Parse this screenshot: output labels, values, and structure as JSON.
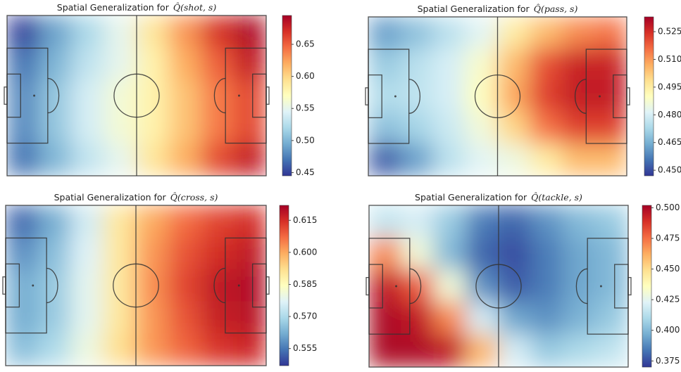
{
  "chart_data": [
    {
      "type": "heatmap",
      "title": "Spatial Generalization for",
      "title_math": "Q̂(shot, s)",
      "colormap": "RdYlBu_r",
      "zlim": [
        0.445,
        0.695
      ],
      "zticks": [
        0.45,
        {
          "value": 0.5,
          "label": "0.50"
        },
        0.55,
        {
          "value": 0.6,
          "label": "0.60"
        },
        0.65
      ],
      "z": [
        [
          0.45,
          0.49,
          0.52,
          0.55,
          0.59,
          0.63,
          0.67,
          0.69
        ],
        [
          0.47,
          0.5,
          0.53,
          0.55,
          0.58,
          0.62,
          0.65,
          0.68
        ],
        [
          0.48,
          0.51,
          0.54,
          0.56,
          0.58,
          0.61,
          0.64,
          0.66
        ],
        [
          0.48,
          0.51,
          0.54,
          0.56,
          0.58,
          0.61,
          0.64,
          0.66
        ],
        [
          0.47,
          0.5,
          0.53,
          0.55,
          0.59,
          0.62,
          0.66,
          0.68
        ]
      ]
    },
    {
      "type": "heatmap",
      "title": "Spatial Generalization for",
      "title_math": "Q̂(pass, s)",
      "colormap": "RdYlBu_r",
      "zlim": [
        0.447,
        0.533
      ],
      "zticks": [
        {
          "value": 0.45,
          "label": "0.450"
        },
        0.465,
        {
          "value": 0.48,
          "label": "0.480"
        },
        0.495,
        {
          "value": 0.51,
          "label": "0.510"
        },
        0.525
      ],
      "z": [
        [
          0.462,
          0.468,
          0.475,
          0.482,
          0.495,
          0.505,
          0.512,
          0.515
        ],
        [
          0.47,
          0.475,
          0.48,
          0.488,
          0.505,
          0.52,
          0.527,
          0.527
        ],
        [
          0.474,
          0.476,
          0.48,
          0.49,
          0.508,
          0.522,
          0.528,
          0.528
        ],
        [
          0.468,
          0.472,
          0.478,
          0.486,
          0.5,
          0.515,
          0.522,
          0.522
        ],
        [
          0.452,
          0.462,
          0.475,
          0.482,
          0.485,
          0.495,
          0.505,
          0.505
        ]
      ]
    },
    {
      "type": "heatmap",
      "title": "Spatial Generalization for",
      "title_math": "Q̂(cross, s)",
      "colormap": "RdYlBu_r",
      "zlim": [
        0.547,
        0.622
      ],
      "zticks": [
        0.555,
        {
          "value": 0.57,
          "label": "0.570"
        },
        0.585,
        {
          "value": 0.6,
          "label": "0.600"
        },
        0.615
      ],
      "z": [
        [
          0.553,
          0.562,
          0.575,
          0.59,
          0.6,
          0.607,
          0.612,
          0.615
        ],
        [
          0.558,
          0.565,
          0.577,
          0.59,
          0.602,
          0.61,
          0.615,
          0.618
        ],
        [
          0.562,
          0.567,
          0.578,
          0.59,
          0.603,
          0.612,
          0.618,
          0.62
        ],
        [
          0.562,
          0.567,
          0.578,
          0.59,
          0.602,
          0.61,
          0.617,
          0.619
        ],
        [
          0.565,
          0.57,
          0.58,
          0.592,
          0.602,
          0.608,
          0.614,
          0.616
        ]
      ]
    },
    {
      "type": "heatmap",
      "title": "Spatial Generalization for",
      "title_math": "Q̂(tackle, s)",
      "colormap": "RdYlBu_r",
      "zlim": [
        0.37,
        0.502
      ],
      "zticks": [
        0.375,
        {
          "value": 0.4,
          "label": "0.400"
        },
        0.425,
        {
          "value": 0.45,
          "label": "0.450"
        },
        0.475,
        {
          "value": 0.5,
          "label": "0.500"
        }
      ],
      "z": [
        [
          0.415,
          0.42,
          0.405,
          0.385,
          0.38,
          0.39,
          0.4,
          0.405
        ],
        [
          0.47,
          0.43,
          0.4,
          0.38,
          0.375,
          0.385,
          0.395,
          0.4
        ],
        [
          0.495,
          0.48,
          0.43,
          0.39,
          0.378,
          0.385,
          0.395,
          0.4
        ],
        [
          0.5,
          0.495,
          0.47,
          0.42,
          0.395,
          0.39,
          0.398,
          0.405
        ],
        [
          0.5,
          0.5,
          0.495,
          0.46,
          0.42,
          0.405,
          0.41,
          0.415
        ]
      ]
    }
  ]
}
